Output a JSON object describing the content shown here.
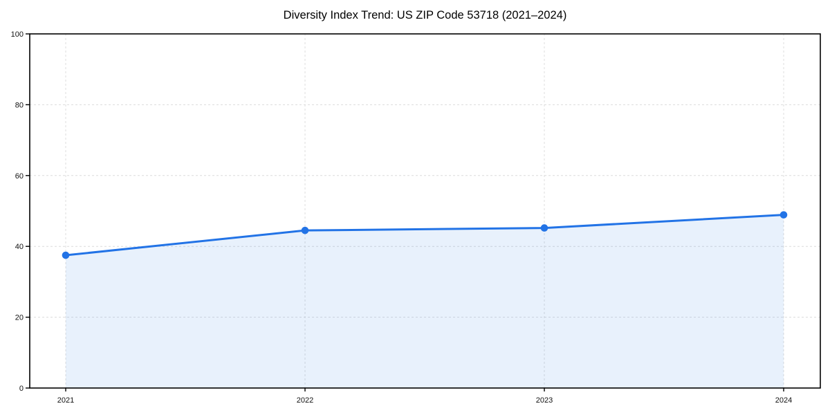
{
  "chart_data": {
    "type": "area",
    "title": "Diversity Index Trend: US ZIP Code 53718 (2021–2024)",
    "x": [
      "2021",
      "2022",
      "2023",
      "2024"
    ],
    "series": [
      {
        "name": "Diversity Index",
        "values": [
          37.5,
          44.5,
          45.2,
          48.9
        ]
      }
    ],
    "xlabel": "",
    "ylabel": "",
    "ylim": [
      0,
      100
    ],
    "yticks": [
      0,
      20,
      40,
      60,
      80,
      100
    ],
    "grid": true,
    "grid_style": "dashed",
    "legend_position": "none",
    "line_color": "#2273E6",
    "marker_color": "#2273E6",
    "fill_color": "#2273E6",
    "fill_opacity": 0.1,
    "grid_color": "#DCDCDC",
    "axis_color": "#000000"
  }
}
